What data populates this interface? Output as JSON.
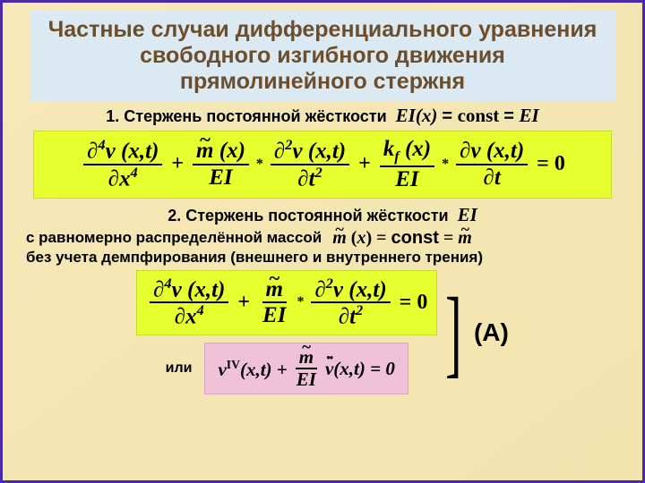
{
  "title": "Частные случаи дифференциального уравнения свободного изгибного движения прямолинейного стержня",
  "item1_lead": "1. Стержень постоянной жёсткости",
  "item1_tail_a": "EI(x)",
  "item1_tail_b": "const",
  "item1_tail_c": "EI",
  "item2_lead": "2. Стержень постоянной жёсткости",
  "item2_tail": "EI",
  "item3": "с равномерно распределённой массой",
  "m_const_eq": "m̃ (x) = const = m̃",
  "item4": "без учета демпфирования (внешнего и внутреннего трения)",
  "or_label": "или",
  "label_A": "(A)",
  "eq1": {
    "f1_num": "∂⁴v (x,t)",
    "f1_den": "∂x⁴",
    "f2a_num": "m̃ (x)",
    "f2a_den": "EI",
    "f2b_num": "∂²v (x,t)",
    "f2b_den": "∂t²",
    "f3a_num": "kf (x)",
    "f3a_den": "EI",
    "f3b_num": "∂v (x,t)",
    "f3b_den": "∂t",
    "rhs": "= 0"
  },
  "eq2": {
    "f1_num": "∂⁴v (x,t)",
    "f1_den": "∂x⁴",
    "f2a_num": "m̃",
    "f2a_den": "EI",
    "f2b_num": "∂²v (x,t)",
    "f2b_den": "∂t²",
    "rhs": "= 0"
  },
  "eq3": {
    "lhs_a": "vᴵⱽ(x,t) +",
    "f_num": "m̃",
    "f_den": "EI",
    "lhs_b": "v̈(x,t) = 0"
  },
  "colors": {
    "border": "#4a2aa8",
    "title_bg": "#dbe9f3",
    "title_fg": "#6e4e2a",
    "eq_yellow": "#e6ff2f",
    "eq_pink": "#f0c2d9",
    "slide_bg": "#f6e8b8"
  }
}
